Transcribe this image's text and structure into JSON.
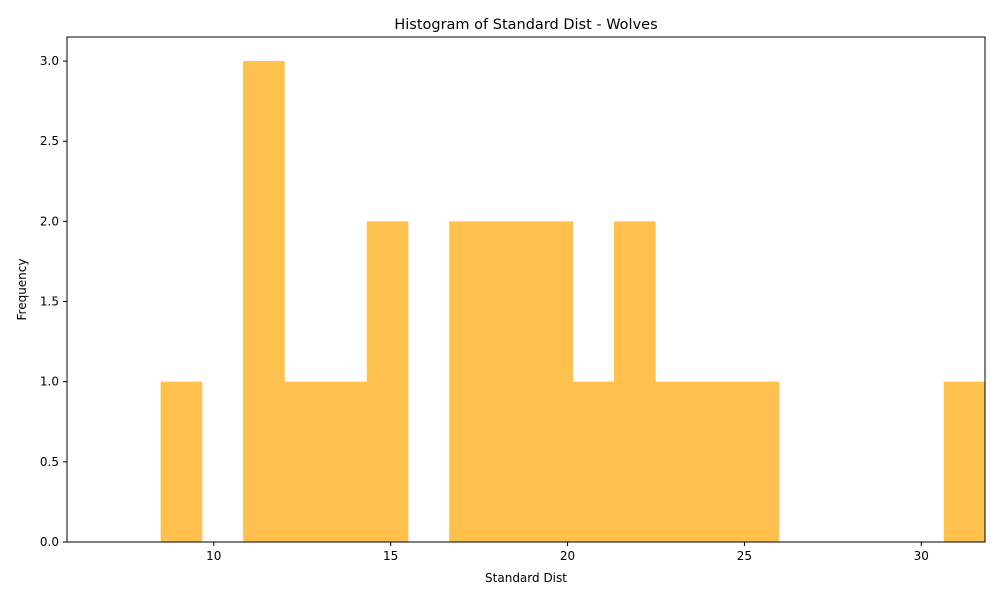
{
  "chart_data": {
    "type": "bar",
    "title": "Histogram of Standard Dist - Wolves",
    "xlabel": "Standard Dist",
    "ylabel": "Frequency",
    "bar_color": "#FFC04D",
    "bin_start": 8.5,
    "bin_width": 1.165,
    "counts": [
      1,
      0,
      3,
      1,
      1,
      2,
      0,
      2,
      2,
      2,
      1,
      2,
      1,
      1,
      1,
      0,
      0,
      0,
      0,
      1
    ],
    "xlim": [
      5.85,
      31.8
    ],
    "ylim": [
      0,
      3.15
    ],
    "xticks": [
      10,
      15,
      20,
      25,
      30
    ],
    "yticks": [
      0.0,
      0.5,
      1.0,
      1.5,
      2.0,
      2.5,
      3.0
    ],
    "xtick_labels": [
      "10",
      "15",
      "20",
      "25",
      "30"
    ],
    "ytick_labels": [
      "0.0",
      "0.5",
      "1.0",
      "1.5",
      "2.0",
      "2.5",
      "3.0"
    ],
    "grid": false,
    "legend": false
  }
}
